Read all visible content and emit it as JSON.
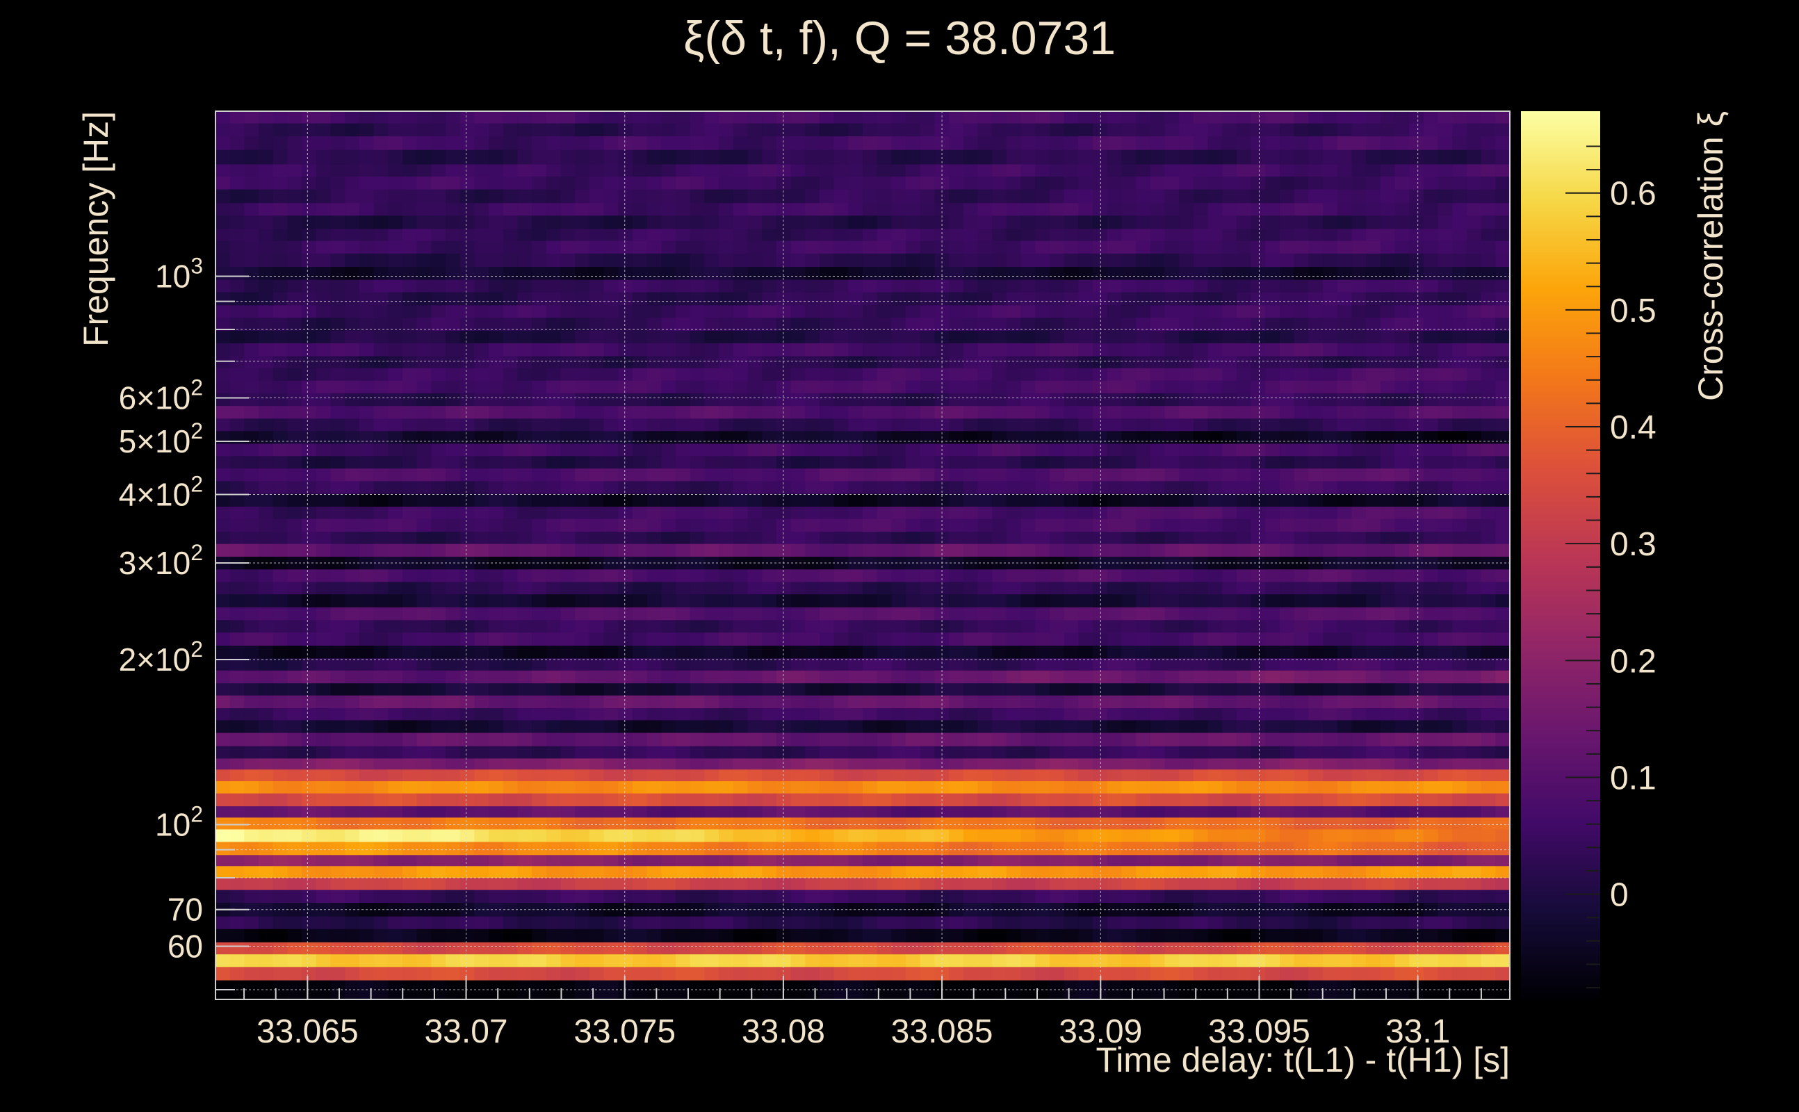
{
  "chart_data": {
    "type": "heatmap",
    "title": "ξ(δ t, f), Q = 38.0731",
    "xlabel": "Time delay: t(L1) - t(H1) [s]",
    "ylabel": "Frequency [Hz]",
    "colorbar_label": "Cross-correlation ξ",
    "xlim": [
      33.0621,
      33.1029
    ],
    "ylim": [
      48,
      2000
    ],
    "y_scale": "log",
    "grid": true,
    "x_ticks": [
      {
        "value": 33.065,
        "label": "33.065"
      },
      {
        "value": 33.07,
        "label": "33.07"
      },
      {
        "value": 33.075,
        "label": "33.075"
      },
      {
        "value": 33.08,
        "label": "33.08"
      },
      {
        "value": 33.085,
        "label": "33.085"
      },
      {
        "value": 33.09,
        "label": "33.09"
      },
      {
        "value": 33.095,
        "label": "33.095"
      },
      {
        "value": 33.1,
        "label": "33.1"
      }
    ],
    "y_ticks": [
      {
        "value": 60,
        "mantissa": "60",
        "exponent": ""
      },
      {
        "value": 70,
        "mantissa": "70",
        "exponent": ""
      },
      {
        "value": 100,
        "mantissa": "10",
        "exponent": "2"
      },
      {
        "value": 200,
        "mantissa": "2×10",
        "exponent": "2"
      },
      {
        "value": 300,
        "mantissa": "3×10",
        "exponent": "2"
      },
      {
        "value": 400,
        "mantissa": "4×10",
        "exponent": "2"
      },
      {
        "value": 500,
        "mantissa": "5×10",
        "exponent": "2"
      },
      {
        "value": 600,
        "mantissa": "6×10",
        "exponent": "2"
      },
      {
        "value": 1000,
        "mantissa": "10",
        "exponent": "3"
      }
    ],
    "zlim": [
      -0.09,
      0.67
    ],
    "colorbar_ticks": [
      {
        "value": 0,
        "label": "0"
      },
      {
        "value": 0.1,
        "label": "0.1"
      },
      {
        "value": 0.2,
        "label": "0.2"
      },
      {
        "value": 0.3,
        "label": "0.3"
      },
      {
        "value": 0.4,
        "label": "0.4"
      },
      {
        "value": 0.5,
        "label": "0.5"
      },
      {
        "value": 0.6,
        "label": "0.6"
      }
    ],
    "colormap": [
      "#000004",
      "#160b39",
      "#420a68",
      "#6a176e",
      "#932667",
      "#bc3754",
      "#dd513a",
      "#f37819",
      "#fca50a",
      "#f6d746",
      "#fcffa4"
    ],
    "rows": [
      {
        "f_low": 1900,
        "f_high": 2000,
        "value": 0.06,
        "trend": 0.01
      },
      {
        "f_low": 1800,
        "f_high": 1900,
        "value": 0.02,
        "trend": 0.02
      },
      {
        "f_low": 1700,
        "f_high": 1800,
        "value": 0.05,
        "trend": 0.02
      },
      {
        "f_low": 1600,
        "f_high": 1700,
        "value": 0.01,
        "trend": 0.01
      },
      {
        "f_low": 1520,
        "f_high": 1600,
        "value": 0.04,
        "trend": 0.02
      },
      {
        "f_low": 1440,
        "f_high": 1520,
        "value": 0.06,
        "trend": -0.02
      },
      {
        "f_low": 1360,
        "f_high": 1440,
        "value": 0.02,
        "trend": 0.02
      },
      {
        "f_low": 1290,
        "f_high": 1360,
        "value": 0.05,
        "trend": 0.01
      },
      {
        "f_low": 1220,
        "f_high": 1290,
        "value": 0.0,
        "trend": 0.03
      },
      {
        "f_low": 1160,
        "f_high": 1220,
        "value": 0.03,
        "trend": 0.02
      },
      {
        "f_low": 1100,
        "f_high": 1160,
        "value": 0.04,
        "trend": 0.03
      },
      {
        "f_low": 1040,
        "f_high": 1100,
        "value": 0.01,
        "trend": 0.02
      },
      {
        "f_low": 985,
        "f_high": 1040,
        "value": -0.03,
        "trend": 0.0
      },
      {
        "f_low": 935,
        "f_high": 985,
        "value": 0.03,
        "trend": 0.02
      },
      {
        "f_low": 885,
        "f_high": 935,
        "value": 0.01,
        "trend": 0.03
      },
      {
        "f_low": 840,
        "f_high": 885,
        "value": 0.04,
        "trend": 0.02
      },
      {
        "f_low": 795,
        "f_high": 840,
        "value": 0.02,
        "trend": 0.03
      },
      {
        "f_low": 755,
        "f_high": 795,
        "value": 0.0,
        "trend": 0.01
      },
      {
        "f_low": 715,
        "f_high": 755,
        "value": 0.05,
        "trend": 0.02
      },
      {
        "f_low": 680,
        "f_high": 715,
        "value": 0.02,
        "trend": 0.01
      },
      {
        "f_low": 645,
        "f_high": 680,
        "value": 0.04,
        "trend": 0.04
      },
      {
        "f_low": 612,
        "f_high": 645,
        "value": 0.06,
        "trend": 0.02
      },
      {
        "f_low": 580,
        "f_high": 612,
        "value": 0.02,
        "trend": 0.02
      },
      {
        "f_low": 550,
        "f_high": 580,
        "value": 0.09,
        "trend": 0.0
      },
      {
        "f_low": 522,
        "f_high": 550,
        "value": 0.03,
        "trend": 0.0
      },
      {
        "f_low": 495,
        "f_high": 522,
        "value": -0.02,
        "trend": -0.04
      },
      {
        "f_low": 470,
        "f_high": 495,
        "value": 0.05,
        "trend": 0.02
      },
      {
        "f_low": 446,
        "f_high": 470,
        "value": 0.01,
        "trend": 0.02
      },
      {
        "f_low": 423,
        "f_high": 446,
        "value": 0.08,
        "trend": 0.02
      },
      {
        "f_low": 401,
        "f_high": 423,
        "value": 0.03,
        "trend": 0.03
      },
      {
        "f_low": 380,
        "f_high": 401,
        "value": -0.04,
        "trend": 0.0
      },
      {
        "f_low": 361,
        "f_high": 380,
        "value": 0.04,
        "trend": 0.05
      },
      {
        "f_low": 342,
        "f_high": 361,
        "value": 0.06,
        "trend": 0.02
      },
      {
        "f_low": 325,
        "f_high": 342,
        "value": 0.02,
        "trend": 0.02
      },
      {
        "f_low": 308,
        "f_high": 325,
        "value": 0.12,
        "trend": 0.0
      },
      {
        "f_low": 292,
        "f_high": 308,
        "value": -0.05,
        "trend": 0.01
      },
      {
        "f_low": 277,
        "f_high": 292,
        "value": 0.07,
        "trend": 0.02
      },
      {
        "f_low": 263,
        "f_high": 277,
        "value": 0.02,
        "trend": 0.01
      },
      {
        "f_low": 249,
        "f_high": 263,
        "value": -0.03,
        "trend": 0.02
      },
      {
        "f_low": 236,
        "f_high": 249,
        "value": 0.09,
        "trend": 0.01
      },
      {
        "f_low": 224,
        "f_high": 236,
        "value": 0.03,
        "trend": 0.02
      },
      {
        "f_low": 212,
        "f_high": 224,
        "value": 0.06,
        "trend": 0.01
      },
      {
        "f_low": 201,
        "f_high": 212,
        "value": -0.05,
        "trend": 0.02
      },
      {
        "f_low": 191,
        "f_high": 201,
        "value": 0.01,
        "trend": 0.05
      },
      {
        "f_low": 181,
        "f_high": 191,
        "value": 0.1,
        "trend": 0.06
      },
      {
        "f_low": 172,
        "f_high": 181,
        "value": -0.02,
        "trend": 0.01
      },
      {
        "f_low": 163,
        "f_high": 172,
        "value": 0.13,
        "trend": -0.01
      },
      {
        "f_low": 155,
        "f_high": 163,
        "value": 0.05,
        "trend": 0.01
      },
      {
        "f_low": 147,
        "f_high": 155,
        "value": -0.03,
        "trend": 0.02
      },
      {
        "f_low": 139,
        "f_high": 147,
        "value": 0.12,
        "trend": 0.01
      },
      {
        "f_low": 132,
        "f_high": 139,
        "value": 0.03,
        "trend": 0.01
      },
      {
        "f_low": 126,
        "f_high": 132,
        "value": 0.17,
        "trend": 0.0
      },
      {
        "f_low": 120,
        "f_high": 126,
        "value": 0.35,
        "trend": 0.0
      },
      {
        "f_low": 114,
        "f_high": 120,
        "value": 0.48,
        "trend": 0.0
      },
      {
        "f_low": 108,
        "f_high": 114,
        "value": 0.35,
        "trend": 0.0
      },
      {
        "f_low": 103,
        "f_high": 108,
        "value": 0.12,
        "trend": -0.02
      },
      {
        "f_low": 98,
        "f_high": 103,
        "value": 0.45,
        "trend": -0.05
      },
      {
        "f_low": 93,
        "f_high": 98,
        "value": 0.67,
        "trend": -0.25
      },
      {
        "f_low": 88,
        "f_high": 93,
        "value": 0.5,
        "trend": -0.1
      },
      {
        "f_low": 84,
        "f_high": 88,
        "value": 0.2,
        "trend": -0.03
      },
      {
        "f_low": 80,
        "f_high": 84,
        "value": 0.5,
        "trend": 0.0
      },
      {
        "f_low": 76,
        "f_high": 80,
        "value": 0.32,
        "trend": 0.0
      },
      {
        "f_low": 72,
        "f_high": 76,
        "value": 0.04,
        "trend": 0.0
      },
      {
        "f_low": 68,
        "f_high": 72,
        "value": -0.04,
        "trend": 0.0
      },
      {
        "f_low": 64.5,
        "f_high": 68,
        "value": 0.02,
        "trend": 0.0
      },
      {
        "f_low": 61,
        "f_high": 64.5,
        "value": -0.06,
        "trend": 0.0
      },
      {
        "f_low": 58,
        "f_high": 61,
        "value": 0.35,
        "trend": 0.0
      },
      {
        "f_low": 55,
        "f_high": 58,
        "value": 0.58,
        "trend": 0.0
      },
      {
        "f_low": 52,
        "f_high": 55,
        "value": 0.35,
        "trend": 0.0
      },
      {
        "f_low": 48,
        "f_high": 52,
        "value": -0.08,
        "trend": 0.0
      }
    ]
  }
}
